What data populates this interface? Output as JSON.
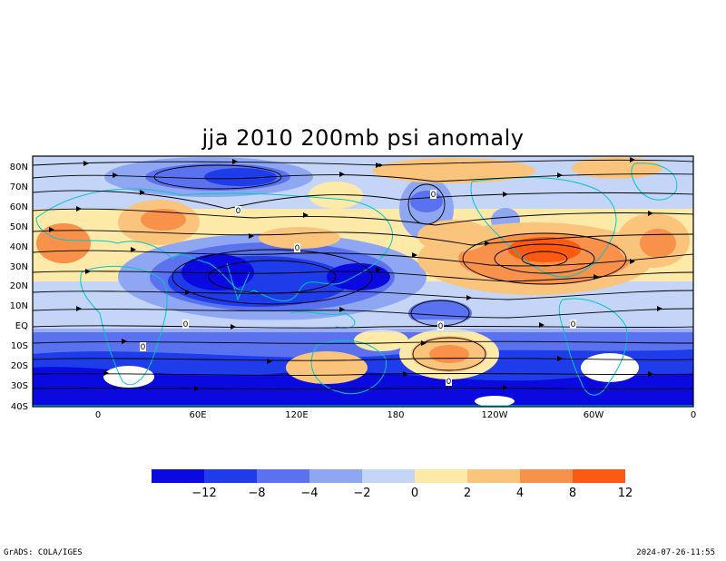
{
  "title": "jja 2010 200mb psi anomaly",
  "lat_labels": [
    "80N",
    "70N",
    "60N",
    "50N",
    "40N",
    "30N",
    "20N",
    "10N",
    "EQ",
    "10S",
    "20S",
    "30S",
    "40S"
  ],
  "lon_labels": [
    "0",
    "60E",
    "120E",
    "180",
    "120W",
    "60W",
    "0"
  ],
  "contour_labels": [
    "0",
    "0",
    "0",
    "0",
    "0",
    "0",
    "0",
    "0"
  ],
  "colorbar": {
    "ticks": [
      "−12",
      "−8",
      "−4",
      "−2",
      "0",
      "2",
      "4",
      "8",
      "12"
    ],
    "colors": [
      "#0a0ae0",
      "#1e3cea",
      "#5a72f0",
      "#8fa6f2",
      "#c5d5f8",
      "#fde9a8",
      "#fbc47c",
      "#f8914a",
      "#fb5a10"
    ]
  },
  "colors": {
    "land_outline": "#00c8c8",
    "streamline": "#000000"
  },
  "footer": {
    "left": "GrADS: COLA/IGES",
    "right": "2024-07-26-11:55"
  }
}
